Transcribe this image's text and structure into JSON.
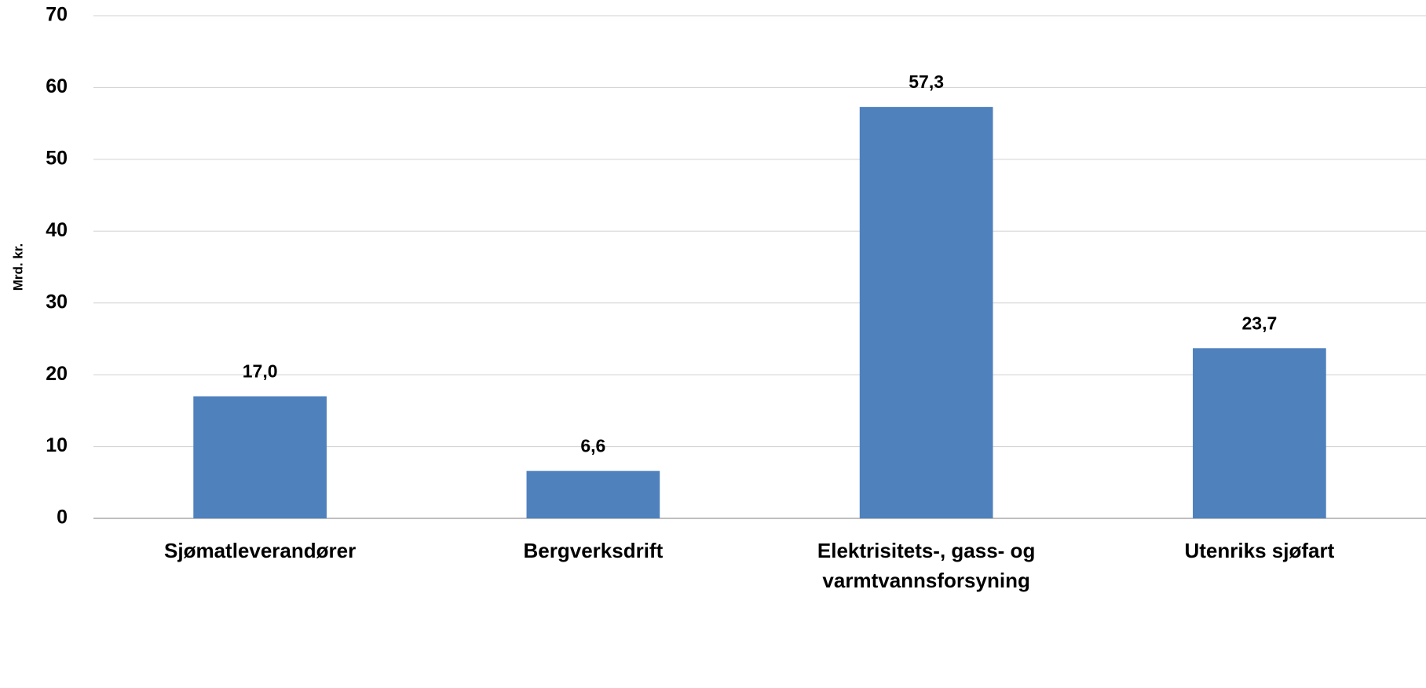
{
  "chart_data": {
    "type": "bar",
    "y_label": "Mrd. kr.",
    "categories": [
      "Sjømatleverandører",
      "Bergverksdrift",
      "Elektrisitets-, gass- og varmtvannsforsyning",
      "Utenriks sjøfart"
    ],
    "values": [
      17.0,
      6.6,
      57.3,
      23.7
    ],
    "value_labels": [
      "17,0",
      "6,6",
      "57,3",
      "23,7"
    ],
    "color": "#4f81bd",
    "ylim": [
      0,
      70
    ],
    "yticks": [
      0,
      10,
      20,
      30,
      40,
      50,
      60,
      70
    ],
    "grid": true
  }
}
